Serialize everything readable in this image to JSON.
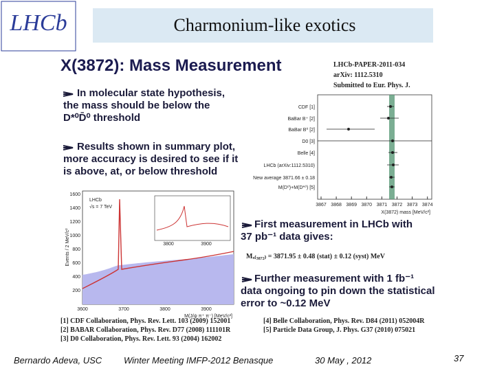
{
  "logo": "LHCb",
  "header": {
    "title": "Charmonium-like exotics"
  },
  "heading": "X(3872): Mass Measurement",
  "paper_refs": [
    "LHCb-PAPER-2011-034",
    "arXiv: 1112.5310",
    "Submitted to Eur. Phys. J."
  ],
  "bullets_left": [
    [
      "In molecular state hypothesis,",
      "the mass should be below the",
      "D*⁰D̄⁰ threshold"
    ],
    [
      "Results shown in summary plot,",
      "more accuracy is desired to see if it",
      "is above, at, or below threshold"
    ]
  ],
  "summary_plot": {
    "labels": [
      "CDF [1]",
      "BaBar B⁺ [2]",
      "BaBar B⁰ [2]",
      "D0 [3]",
      "Belle [4]",
      "LHCb (arXiv:1112.5310)",
      "New average 3871.66 ± 0.18",
      "M(D⁰)+M(D*⁰) [5]"
    ],
    "ticks": [
      "3867",
      "3868",
      "3869",
      "3870",
      "3871",
      "3872",
      "3873",
      "3874"
    ],
    "xlabel": "X(3872) mass [MeV/c²]"
  },
  "mass_plot": {
    "title": "LHCb",
    "subtitle": "√s = 7 TeV",
    "ylabel": "Events / 2 MeV/c²",
    "yticks": [
      "1600",
      "1400",
      "1200",
      "1000",
      "800",
      "600",
      "400",
      "200"
    ],
    "xticks": [
      "3600",
      "3700",
      "3800",
      "3900"
    ],
    "inset_ticks": [
      "3800",
      "3900"
    ],
    "xlabel": "M(J/ψ π⁺ π⁻) [MeV/c²]"
  },
  "bullets_right": [
    [
      "First measurement in LHCb with",
      "37 pb⁻¹ data gives:"
    ],
    [
      "Further measurement with 1 fb⁻¹",
      "data ongoing to pin down the statistical",
      "error to ~0.12 MeV"
    ]
  ],
  "result": "Mₓ₍₃₈₇₂₎ = 3871.95 ± 0.48 (stat) ± 0.12 (syst) MeV",
  "references_left": [
    "[1] CDF Collaboration, Phys. Rev. Lett. 103 (2009) 152001",
    "[2] BABAR Collaboration, Phys. Rev. D77 (2008) 111101R",
    "[3] D0 Collaboration, Phys. Rev. Lett. 93 (2004) 162002"
  ],
  "references_right": [
    "[4] Belle Collaboration, Phys. Rev. D84 (2011) 052004R",
    "[5] Particle Data Group, J. Phys. G37 (2010) 075021"
  ],
  "footer": {
    "author": "Bernardo Adeva, USC",
    "event": "Winter Meeting IMFP-2012  Benasque",
    "date": "30 May , 2012",
    "page": "37"
  }
}
